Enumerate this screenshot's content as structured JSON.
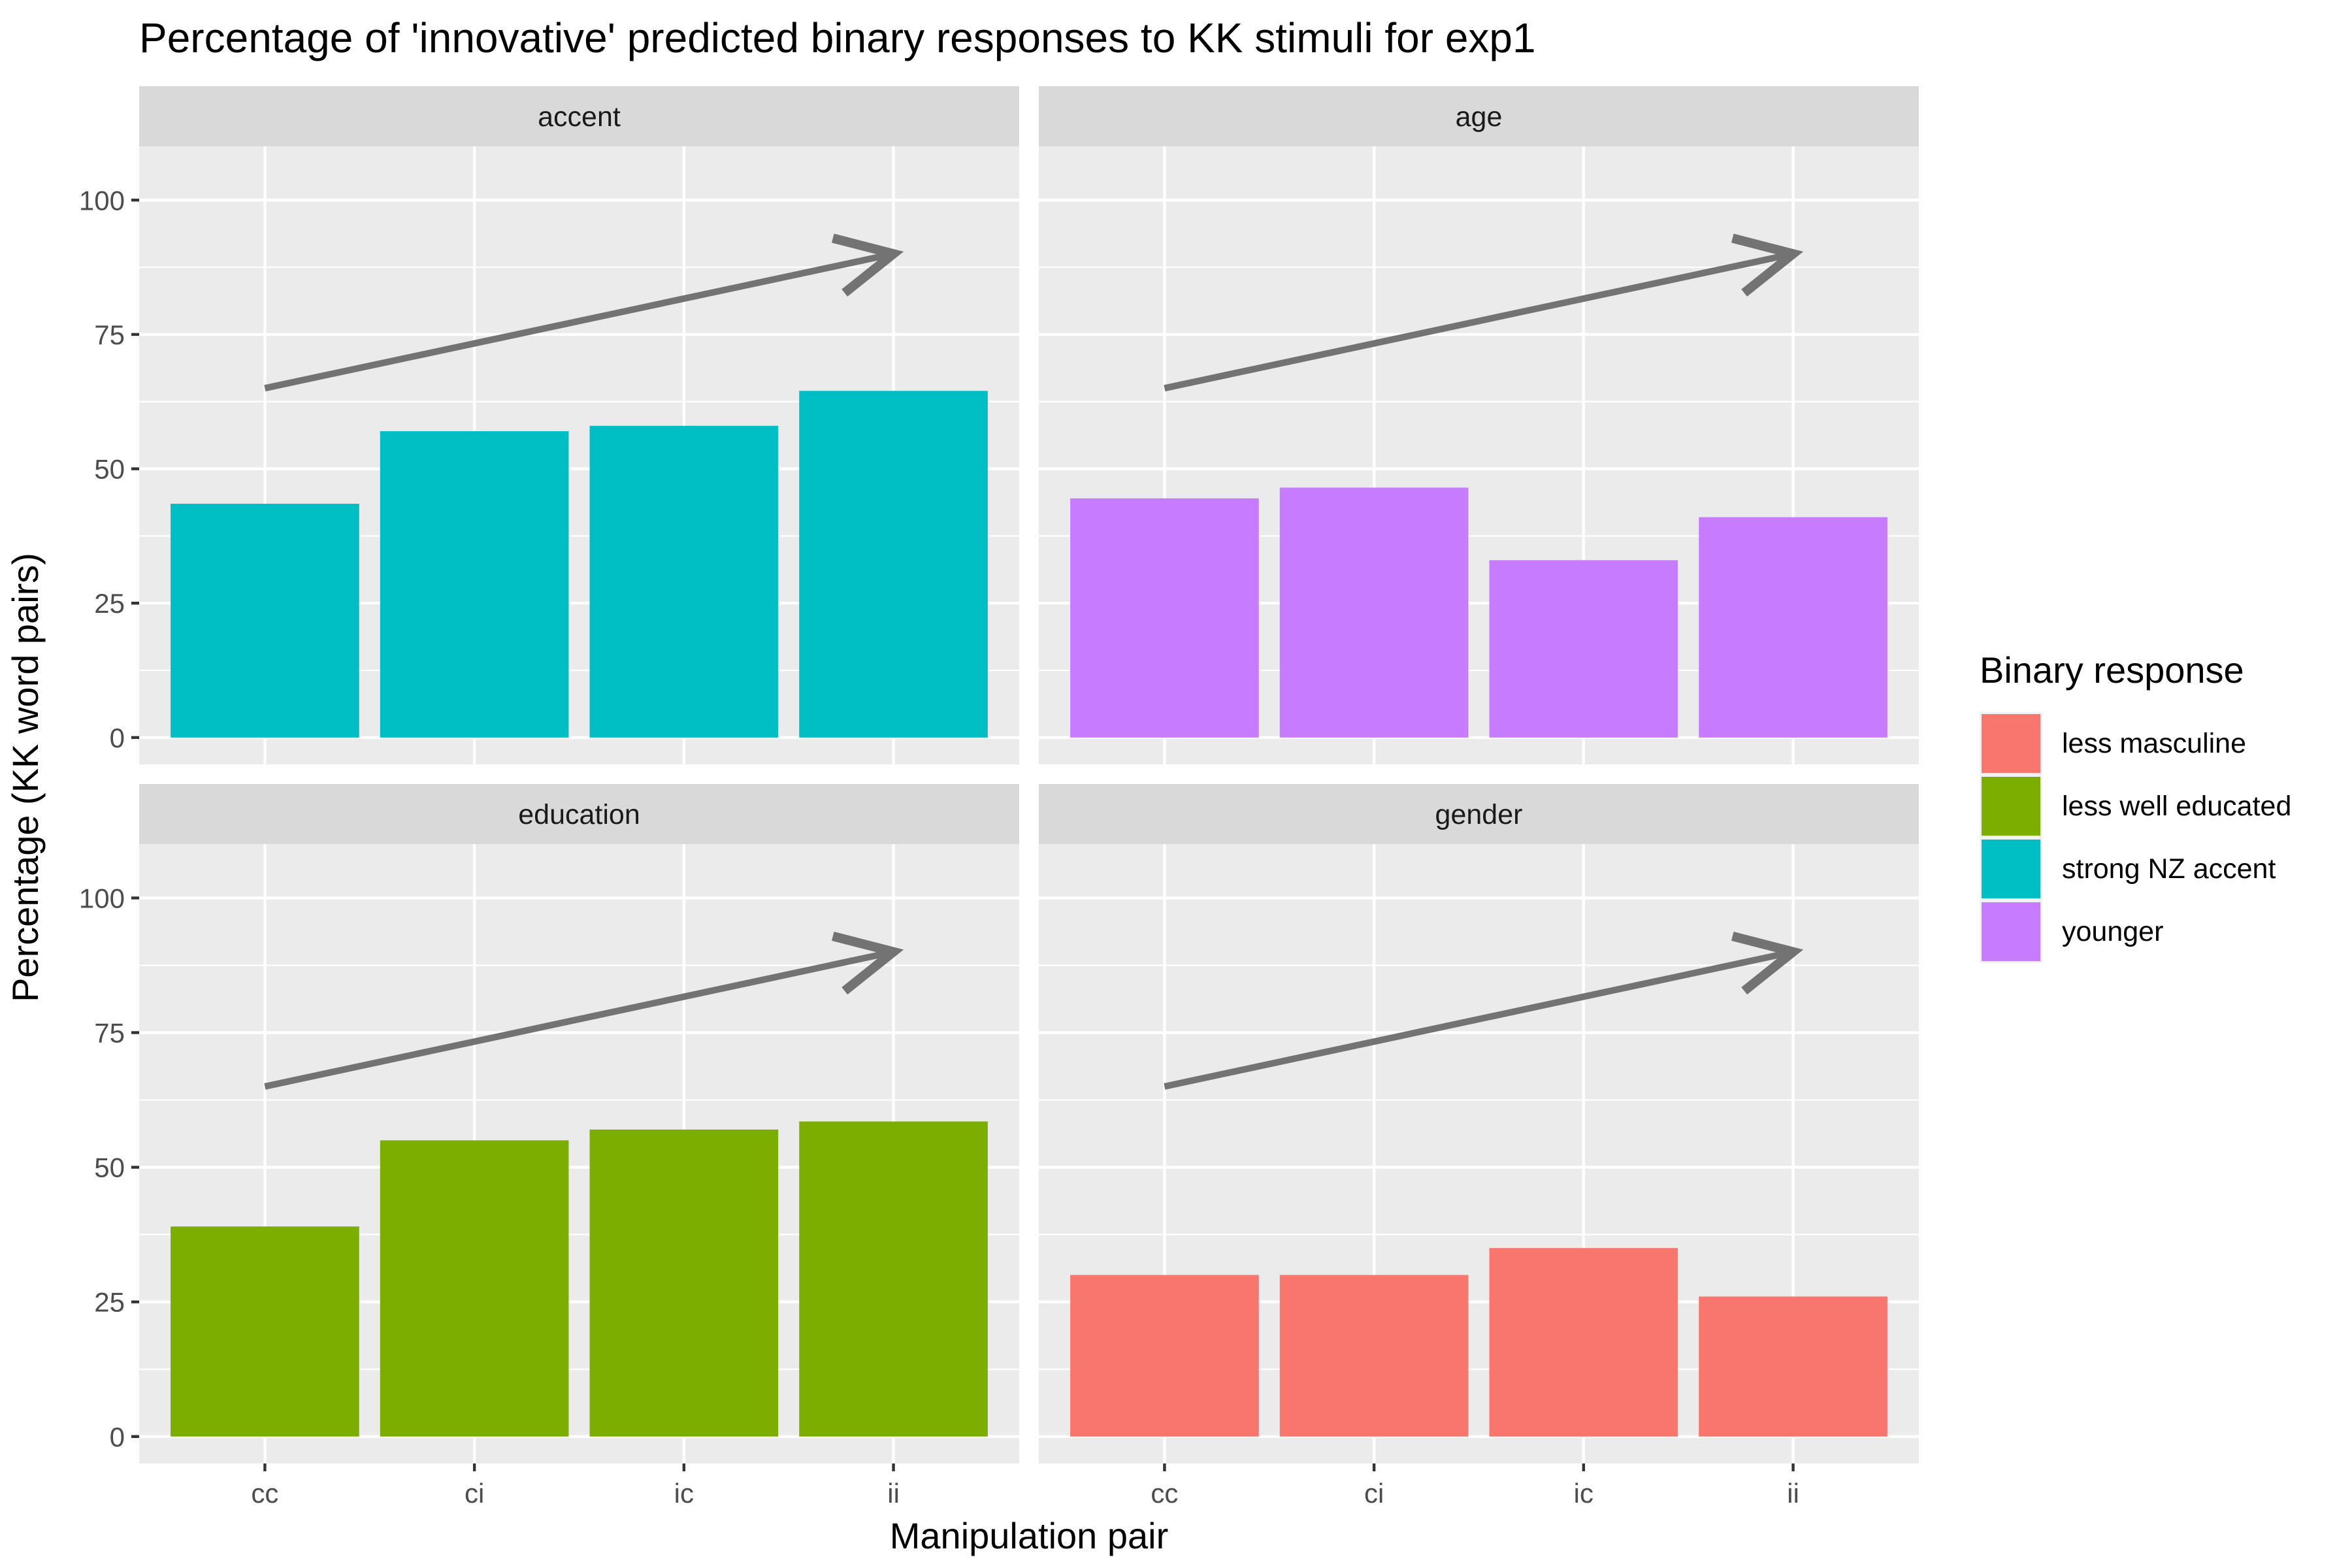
{
  "chart_data": {
    "type": "bar",
    "title": "Percentage of 'innovative' predicted binary responses to KK stimuli for exp1",
    "xlabel": "Manipulation pair",
    "ylabel": "Percentage (KK word pairs)",
    "categories": [
      "cc",
      "ci",
      "ic",
      "ii"
    ],
    "ylim": [
      -5,
      110
    ],
    "yticks": [
      0,
      25,
      50,
      75,
      100
    ],
    "grid": true,
    "legend": {
      "title": "Binary response",
      "position": "right",
      "entries": [
        {
          "label": "less masculine",
          "color": "#F8766D"
        },
        {
          "label": "less well educated",
          "color": "#7CAE00"
        },
        {
          "label": "strong NZ accent",
          "color": "#00BFC4"
        },
        {
          "label": "younger",
          "color": "#C77CFF"
        }
      ]
    },
    "arrow": {
      "from": {
        "category": "cc",
        "y": 65
      },
      "to": {
        "category": "ii",
        "y": 90
      }
    },
    "panels": [
      {
        "strip": "accent",
        "series": "strong NZ accent",
        "color": "#00BFC4",
        "values": [
          43.5,
          57,
          58,
          64.5
        ]
      },
      {
        "strip": "age",
        "series": "younger",
        "color": "#C77CFF",
        "values": [
          44.5,
          46.5,
          33,
          41
        ]
      },
      {
        "strip": "education",
        "series": "less well educated",
        "color": "#7CAE00",
        "values": [
          39,
          55,
          57,
          58.5
        ]
      },
      {
        "strip": "gender",
        "series": "less masculine",
        "color": "#F8766D",
        "values": [
          30,
          30,
          35,
          26
        ]
      }
    ]
  }
}
